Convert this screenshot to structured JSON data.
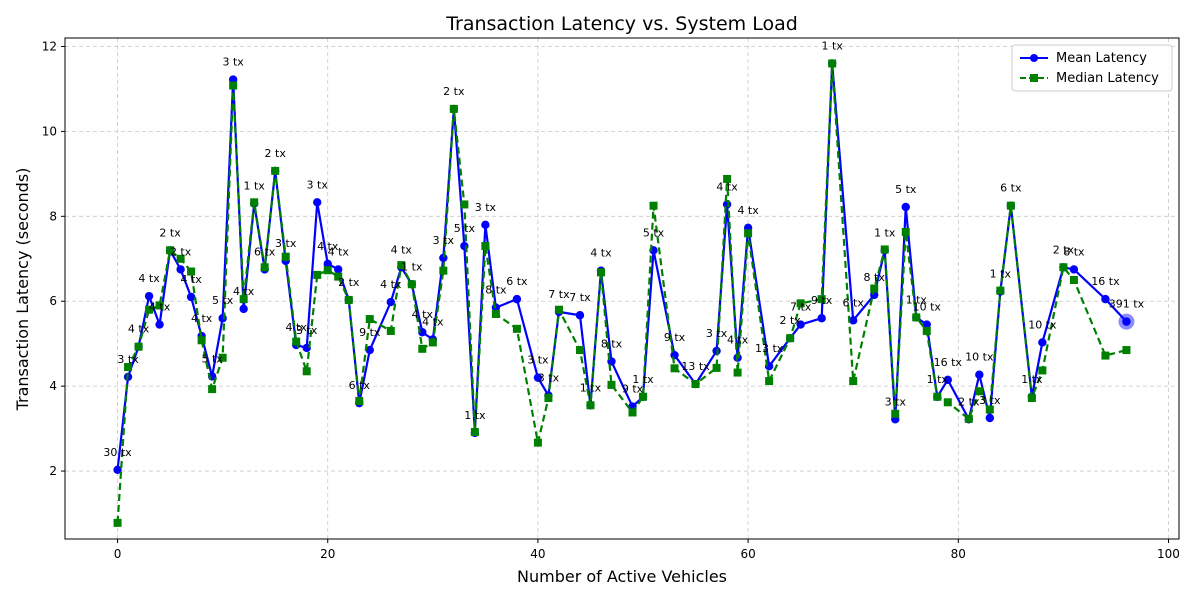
{
  "chart_data": {
    "type": "line",
    "title": "Transaction Latency vs. System Load",
    "xlabel": "Number of Active Vehicles",
    "ylabel": "Transaction Latency (seconds)",
    "xlim": [
      -5,
      101
    ],
    "ylim": [
      0.4,
      12.2
    ],
    "xticks": [
      0,
      20,
      40,
      60,
      80,
      100
    ],
    "yticks": [
      2,
      4,
      6,
      8,
      10,
      12
    ],
    "grid": true,
    "legend_position": "top-right",
    "series": [
      {
        "name": "Mean Latency",
        "color": "#0000ff",
        "marker": "circle",
        "linestyle": "solid",
        "points": [
          [
            0,
            2.03
          ],
          [
            1,
            4.22
          ],
          [
            2,
            4.93
          ],
          [
            3,
            6.12
          ],
          [
            4,
            5.45
          ],
          [
            5,
            7.2
          ],
          [
            6,
            6.75
          ],
          [
            7,
            6.1
          ],
          [
            8,
            5.18
          ],
          [
            9,
            4.23
          ],
          [
            10,
            5.6
          ],
          [
            11,
            11.22
          ],
          [
            12,
            5.82
          ],
          [
            13,
            8.3
          ],
          [
            14,
            6.75
          ],
          [
            15,
            9.07
          ],
          [
            16,
            6.95
          ],
          [
            17,
            4.97
          ],
          [
            18,
            4.9
          ],
          [
            19,
            8.33
          ],
          [
            20,
            6.88
          ],
          [
            21,
            6.75
          ],
          [
            22,
            6.03
          ],
          [
            23,
            3.6
          ],
          [
            24,
            4.85
          ],
          [
            26,
            5.98
          ],
          [
            27,
            6.8
          ],
          [
            28,
            6.4
          ],
          [
            29,
            5.27
          ],
          [
            30,
            5.1
          ],
          [
            31,
            7.02
          ],
          [
            32,
            10.53
          ],
          [
            33,
            7.3
          ],
          [
            34,
            2.9
          ],
          [
            35,
            7.8
          ],
          [
            36,
            5.85
          ],
          [
            38,
            6.05
          ],
          [
            40,
            4.2
          ],
          [
            41,
            3.78
          ],
          [
            42,
            5.75
          ],
          [
            44,
            5.67
          ],
          [
            45,
            3.55
          ],
          [
            46,
            6.72
          ],
          [
            47,
            4.58
          ],
          [
            49,
            3.52
          ],
          [
            50,
            3.75
          ],
          [
            51,
            7.2
          ],
          [
            53,
            4.73
          ],
          [
            55,
            4.05
          ],
          [
            57,
            4.83
          ],
          [
            58,
            8.28
          ],
          [
            59,
            4.67
          ],
          [
            60,
            7.73
          ],
          [
            62,
            4.47
          ],
          [
            64,
            5.13
          ],
          [
            65,
            5.45
          ],
          [
            67,
            5.6
          ],
          [
            68,
            11.6
          ],
          [
            70,
            5.55
          ],
          [
            72,
            6.15
          ],
          [
            73,
            7.2
          ],
          [
            74,
            3.22
          ],
          [
            75,
            8.22
          ],
          [
            76,
            5.62
          ],
          [
            77,
            5.45
          ],
          [
            78,
            3.75
          ],
          [
            79,
            4.15
          ],
          [
            81,
            3.22
          ],
          [
            82,
            4.27
          ],
          [
            83,
            3.25
          ],
          [
            84,
            6.23
          ],
          [
            85,
            8.25
          ],
          [
            87,
            3.75
          ],
          [
            88,
            5.03
          ],
          [
            90,
            6.8
          ],
          [
            91,
            6.75
          ],
          [
            94,
            6.05
          ],
          [
            96,
            5.52
          ]
        ]
      },
      {
        "name": "Median Latency",
        "color": "#008000",
        "marker": "square",
        "linestyle": "dashed",
        "points": [
          [
            0,
            0.78
          ],
          [
            1,
            4.45
          ],
          [
            2,
            4.93
          ],
          [
            3,
            5.8
          ],
          [
            4,
            5.9
          ],
          [
            5,
            7.2
          ],
          [
            6,
            7.0
          ],
          [
            7,
            6.7
          ],
          [
            8,
            5.08
          ],
          [
            9,
            3.93
          ],
          [
            10,
            4.67
          ],
          [
            11,
            11.08
          ],
          [
            12,
            6.05
          ],
          [
            13,
            8.33
          ],
          [
            14,
            6.8
          ],
          [
            15,
            9.07
          ],
          [
            16,
            7.05
          ],
          [
            17,
            5.05
          ],
          [
            18,
            4.35
          ],
          [
            19,
            6.62
          ],
          [
            20,
            6.73
          ],
          [
            21,
            6.58
          ],
          [
            22,
            6.03
          ],
          [
            23,
            3.65
          ],
          [
            24,
            5.58
          ],
          [
            26,
            5.3
          ],
          [
            27,
            6.85
          ],
          [
            28,
            6.4
          ],
          [
            29,
            4.88
          ],
          [
            30,
            5.03
          ],
          [
            31,
            6.72
          ],
          [
            32,
            10.53
          ],
          [
            33,
            8.28
          ],
          [
            34,
            2.92
          ],
          [
            35,
            7.3
          ],
          [
            36,
            5.7
          ],
          [
            38,
            5.35
          ],
          [
            40,
            2.67
          ],
          [
            41,
            3.72
          ],
          [
            42,
            5.8
          ],
          [
            44,
            4.85
          ],
          [
            45,
            3.55
          ],
          [
            46,
            6.68
          ],
          [
            47,
            4.03
          ],
          [
            49,
            3.38
          ],
          [
            50,
            3.75
          ],
          [
            51,
            8.25
          ],
          [
            53,
            4.42
          ],
          [
            55,
            4.05
          ],
          [
            57,
            4.43
          ],
          [
            58,
            8.88
          ],
          [
            59,
            4.32
          ],
          [
            60,
            7.6
          ],
          [
            62,
            4.12
          ],
          [
            64,
            5.13
          ],
          [
            65,
            5.95
          ],
          [
            67,
            6.05
          ],
          [
            68,
            11.6
          ],
          [
            70,
            4.12
          ],
          [
            72,
            6.3
          ],
          [
            73,
            7.22
          ],
          [
            74,
            3.35
          ],
          [
            75,
            7.63
          ],
          [
            76,
            5.62
          ],
          [
            77,
            5.3
          ],
          [
            78,
            3.75
          ],
          [
            79,
            3.62
          ],
          [
            81,
            3.23
          ],
          [
            82,
            3.88
          ],
          [
            83,
            3.45
          ],
          [
            84,
            6.25
          ],
          [
            85,
            8.25
          ],
          [
            87,
            3.72
          ],
          [
            88,
            4.37
          ],
          [
            90,
            6.8
          ],
          [
            91,
            6.5
          ],
          [
            94,
            4.72
          ],
          [
            96,
            4.85
          ]
        ]
      }
    ],
    "highlight": {
      "x": 96,
      "y": 5.52,
      "color": "#0000ff"
    },
    "annotations": [
      {
        "x": 0,
        "y": 2.03,
        "text": "30 tx"
      },
      {
        "x": 1,
        "y": 4.22,
        "text": "3 tx"
      },
      {
        "x": 2,
        "y": 4.93,
        "text": "4 tx"
      },
      {
        "x": 3,
        "y": 6.12,
        "text": "4 tx"
      },
      {
        "x": 4,
        "y": 5.45,
        "text": "4 tx"
      },
      {
        "x": 5,
        "y": 7.2,
        "text": "2 tx"
      },
      {
        "x": 6,
        "y": 6.75,
        "text": "2 tx"
      },
      {
        "x": 7,
        "y": 6.1,
        "text": "4 tx"
      },
      {
        "x": 8,
        "y": 5.18,
        "text": "4 tx"
      },
      {
        "x": 9,
        "y": 4.23,
        "text": "5 tx"
      },
      {
        "x": 10,
        "y": 5.6,
        "text": "5 tx"
      },
      {
        "x": 11,
        "y": 11.22,
        "text": "3 tx"
      },
      {
        "x": 12,
        "y": 5.82,
        "text": "4 tx"
      },
      {
        "x": 13,
        "y": 8.3,
        "text": "1 tx"
      },
      {
        "x": 14,
        "y": 6.75,
        "text": "6 tx"
      },
      {
        "x": 15,
        "y": 9.07,
        "text": "2 tx"
      },
      {
        "x": 16,
        "y": 6.95,
        "text": "3 tx"
      },
      {
        "x": 17,
        "y": 4.97,
        "text": "4 tx"
      },
      {
        "x": 18,
        "y": 4.9,
        "text": "3 tx"
      },
      {
        "x": 19,
        "y": 8.33,
        "text": "3 tx"
      },
      {
        "x": 20,
        "y": 6.88,
        "text": "4 tx"
      },
      {
        "x": 21,
        "y": 6.75,
        "text": "4 tx"
      },
      {
        "x": 22,
        "y": 6.03,
        "text": "2 tx"
      },
      {
        "x": 23,
        "y": 3.6,
        "text": "6 tx"
      },
      {
        "x": 24,
        "y": 4.85,
        "text": "9 tx"
      },
      {
        "x": 26,
        "y": 5.98,
        "text": "4 tx"
      },
      {
        "x": 27,
        "y": 6.8,
        "text": "4 tx"
      },
      {
        "x": 28,
        "y": 6.4,
        "text": "1 tx"
      },
      {
        "x": 29,
        "y": 5.27,
        "text": "4 tx"
      },
      {
        "x": 30,
        "y": 5.1,
        "text": "4 tx"
      },
      {
        "x": 31,
        "y": 7.02,
        "text": "3 tx"
      },
      {
        "x": 32,
        "y": 10.53,
        "text": "2 tx"
      },
      {
        "x": 33,
        "y": 7.3,
        "text": "5 tx"
      },
      {
        "x": 34,
        "y": 2.9,
        "text": "1 tx"
      },
      {
        "x": 35,
        "y": 7.8,
        "text": "3 tx"
      },
      {
        "x": 36,
        "y": 5.85,
        "text": "8 tx"
      },
      {
        "x": 38,
        "y": 6.05,
        "text": "6 tx"
      },
      {
        "x": 40,
        "y": 4.2,
        "text": "3 tx"
      },
      {
        "x": 41,
        "y": 3.78,
        "text": "3 tx"
      },
      {
        "x": 42,
        "y": 5.75,
        "text": "7 tx"
      },
      {
        "x": 44,
        "y": 5.67,
        "text": "7 tx"
      },
      {
        "x": 45,
        "y": 3.55,
        "text": "1 tx"
      },
      {
        "x": 46,
        "y": 6.72,
        "text": "4 tx"
      },
      {
        "x": 47,
        "y": 4.58,
        "text": "8 tx"
      },
      {
        "x": 49,
        "y": 3.52,
        "text": "9 tx"
      },
      {
        "x": 50,
        "y": 3.75,
        "text": "1 tx"
      },
      {
        "x": 51,
        "y": 7.2,
        "text": "5 tx"
      },
      {
        "x": 53,
        "y": 4.73,
        "text": "9 tx"
      },
      {
        "x": 55,
        "y": 4.05,
        "text": "13 tx"
      },
      {
        "x": 57,
        "y": 4.83,
        "text": "3 tx"
      },
      {
        "x": 58,
        "y": 8.28,
        "text": "4 tx"
      },
      {
        "x": 59,
        "y": 4.67,
        "text": "4 tx"
      },
      {
        "x": 60,
        "y": 7.73,
        "text": "4 tx"
      },
      {
        "x": 62,
        "y": 4.47,
        "text": "13 tx"
      },
      {
        "x": 64,
        "y": 5.13,
        "text": "2 tx"
      },
      {
        "x": 65,
        "y": 5.45,
        "text": "7 tx"
      },
      {
        "x": 67,
        "y": 5.6,
        "text": "9 tx"
      },
      {
        "x": 68,
        "y": 11.6,
        "text": "1 tx"
      },
      {
        "x": 70,
        "y": 5.55,
        "text": "6 tx"
      },
      {
        "x": 72,
        "y": 6.15,
        "text": "8 tx"
      },
      {
        "x": 73,
        "y": 7.2,
        "text": "1 tx"
      },
      {
        "x": 74,
        "y": 3.22,
        "text": "3 tx"
      },
      {
        "x": 75,
        "y": 8.22,
        "text": "5 tx"
      },
      {
        "x": 76,
        "y": 5.62,
        "text": "1 tx"
      },
      {
        "x": 77,
        "y": 5.45,
        "text": "10 tx"
      },
      {
        "x": 78,
        "y": 3.75,
        "text": "1 tx"
      },
      {
        "x": 79,
        "y": 4.15,
        "text": "16 tx"
      },
      {
        "x": 81,
        "y": 3.22,
        "text": "2 tx"
      },
      {
        "x": 82,
        "y": 4.27,
        "text": "10 tx"
      },
      {
        "x": 83,
        "y": 3.25,
        "text": "3 tx"
      },
      {
        "x": 84,
        "y": 6.23,
        "text": "1 tx"
      },
      {
        "x": 85,
        "y": 8.25,
        "text": "6 tx"
      },
      {
        "x": 87,
        "y": 3.75,
        "text": "1 tx"
      },
      {
        "x": 88,
        "y": 5.03,
        "text": "10 tx"
      },
      {
        "x": 90,
        "y": 6.8,
        "text": "2 tx"
      },
      {
        "x": 91,
        "y": 6.75,
        "text": "8 tx"
      },
      {
        "x": 94,
        "y": 6.05,
        "text": "16 tx"
      },
      {
        "x": 96,
        "y": 5.52,
        "text": "391 tx"
      }
    ]
  }
}
